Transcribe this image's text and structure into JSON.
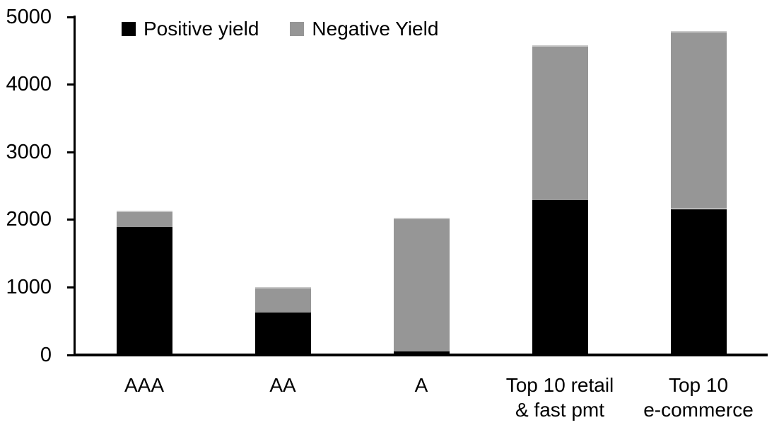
{
  "chart_data": {
    "type": "bar",
    "stacked": true,
    "title": "",
    "xlabel": "",
    "ylabel": "",
    "categories": [
      "AAA",
      "AA",
      "A",
      "Top 10 retail\n& fast pmt",
      "Top 10\ne-commerce"
    ],
    "series": [
      {
        "name": "Positive yield",
        "color": "#000000",
        "values": [
          1890,
          630,
          50,
          2290,
          2160
        ]
      },
      {
        "name": "Negative Yield",
        "color": "#969696",
        "values": [
          240,
          370,
          1980,
          2290,
          2630
        ]
      }
    ],
    "totals": [
      2130,
      1000,
      2030,
      4580,
      4790
    ],
    "ylim": [
      0,
      5000
    ],
    "yticks": [
      0,
      1000,
      2000,
      3000,
      4000,
      5000
    ],
    "grid": false,
    "legend_position": "top-inside",
    "axis_color": "#000000",
    "background_color": "#ffffff"
  }
}
